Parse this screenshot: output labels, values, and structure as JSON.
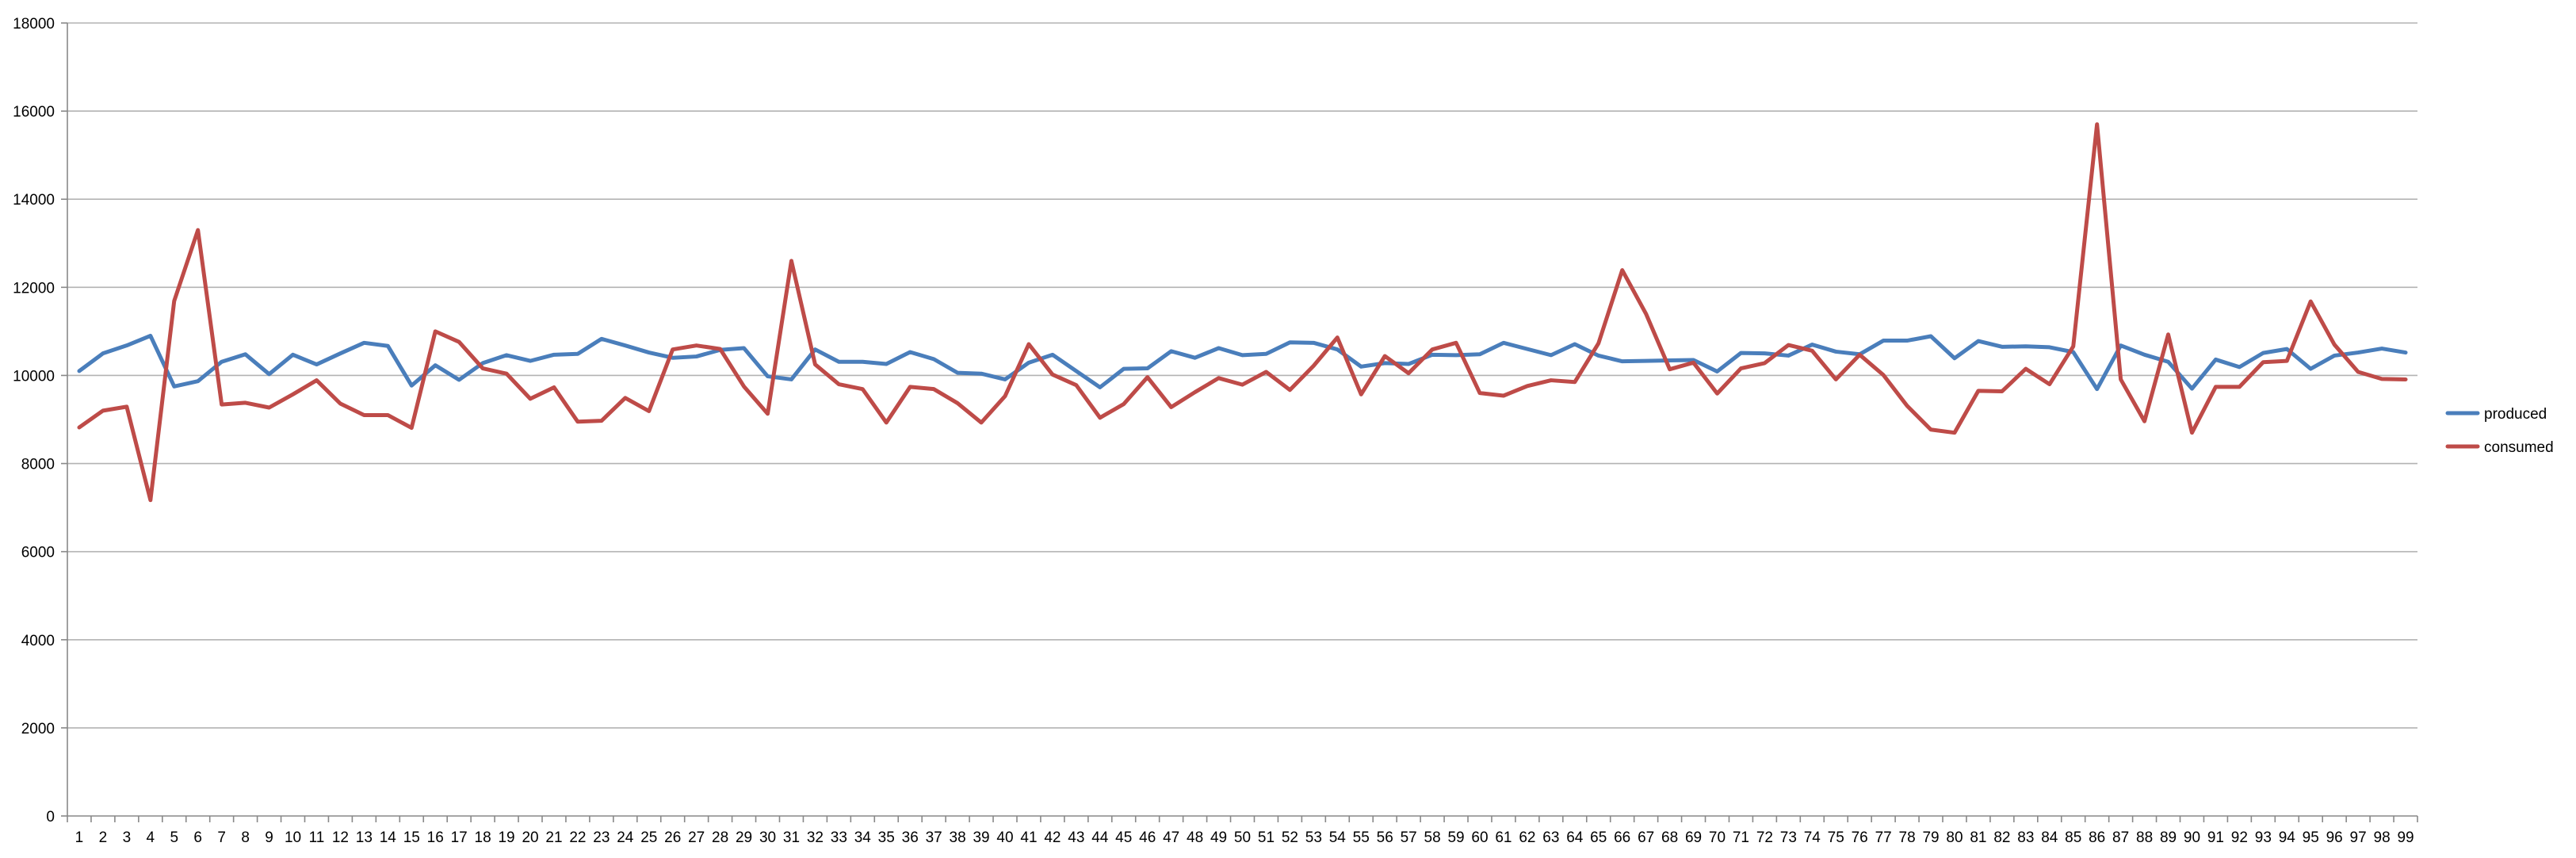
{
  "chart_data": {
    "type": "line",
    "title": "",
    "xlabel": "",
    "ylabel": "",
    "ylim": [
      0,
      18000
    ],
    "y_ticks": [
      0,
      2000,
      4000,
      6000,
      8000,
      10000,
      12000,
      14000,
      16000,
      18000
    ],
    "grid": true,
    "legend_position": "right",
    "x": [
      1,
      2,
      3,
      4,
      5,
      6,
      7,
      8,
      9,
      10,
      11,
      12,
      13,
      14,
      15,
      16,
      17,
      18,
      19,
      20,
      21,
      22,
      23,
      24,
      25,
      26,
      27,
      28,
      29,
      30,
      31,
      32,
      33,
      34,
      35,
      36,
      37,
      38,
      39,
      40,
      41,
      42,
      43,
      44,
      45,
      46,
      47,
      48,
      49,
      50,
      51,
      52,
      53,
      54,
      55,
      56,
      57,
      58,
      59,
      60,
      61,
      62,
      63,
      64,
      65,
      66,
      67,
      68,
      69,
      70,
      71,
      72,
      73,
      74,
      75,
      76,
      77,
      78,
      79,
      80,
      81,
      82,
      83,
      84,
      85,
      86,
      87,
      88,
      89,
      90,
      91,
      92,
      93,
      94,
      95,
      96,
      97,
      98,
      99
    ],
    "series": [
      {
        "name": "produced",
        "color": "#4a7ebb",
        "values": [
          10100,
          10500,
          10680,
          10900,
          9750,
          9870,
          10310,
          10480,
          10030,
          10470,
          10250,
          10500,
          10740,
          10670,
          9770,
          10230,
          9900,
          10280,
          10460,
          10330,
          10470,
          10490,
          10830,
          10680,
          10520,
          10400,
          10430,
          10580,
          10620,
          9980,
          9910,
          10590,
          10310,
          10310,
          10260,
          10530,
          10370,
          10060,
          10040,
          9910,
          10290,
          10470,
          10100,
          9730,
          10150,
          10160,
          10550,
          10400,
          10620,
          10460,
          10490,
          10750,
          10740,
          10590,
          10200,
          10280,
          10260,
          10470,
          10460,
          10480,
          10740,
          10600,
          10460,
          10710,
          10450,
          10320,
          10330,
          10340,
          10350,
          10090,
          10510,
          10500,
          10450,
          10700,
          10540,
          10480,
          10790,
          10790,
          10890,
          10390,
          10780,
          10650,
          10660,
          10640,
          10530,
          9690,
          10680,
          10470,
          10310,
          9700,
          10360,
          10190,
          10510,
          10600,
          10150,
          10450,
          10520,
          10610,
          10520
        ]
      },
      {
        "name": "consumed",
        "color": "#be4b48",
        "values": [
          8820,
          9200,
          9290,
          7170,
          11690,
          13300,
          9340,
          9380,
          9270,
          9570,
          9890,
          9360,
          9100,
          9100,
          8810,
          11000,
          10760,
          10160,
          10040,
          9470,
          9730,
          8950,
          8970,
          9490,
          9190,
          10590,
          10680,
          10600,
          9750,
          9130,
          12600,
          10250,
          9800,
          9690,
          8930,
          9740,
          9690,
          9370,
          8930,
          9530,
          10710,
          10020,
          9780,
          9040,
          9350,
          9960,
          9280,
          9620,
          9940,
          9790,
          10080,
          9670,
          10220,
          10860,
          9570,
          10440,
          10050,
          10590,
          10740,
          9600,
          9540,
          9760,
          9890,
          9850,
          10730,
          12390,
          11400,
          10140,
          10290,
          9590,
          10160,
          10280,
          10690,
          10560,
          9910,
          10470,
          10010,
          9310,
          8770,
          8700,
          9650,
          9640,
          10150,
          9800,
          10660,
          15700,
          9910,
          8960,
          10930,
          8700,
          9740,
          9740,
          10300,
          10330,
          11680,
          10700,
          10080,
          9920,
          9910
        ]
      }
    ]
  }
}
